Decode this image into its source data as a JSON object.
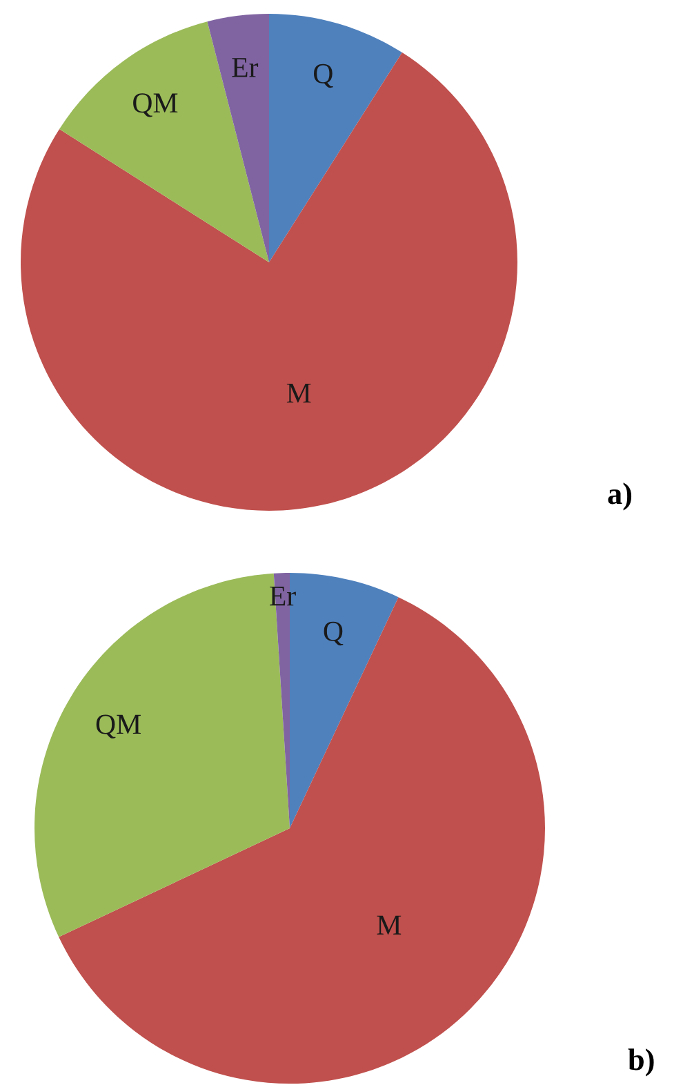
{
  "chart_data": [
    {
      "type": "pie",
      "title": "a)",
      "categories": [
        "Q",
        "M",
        "QM",
        "Er"
      ],
      "values": [
        9,
        75,
        12,
        4
      ],
      "colors": [
        "#4f81bd",
        "#c0504d",
        "#9bbb59",
        "#8064a2"
      ]
    },
    {
      "type": "pie",
      "title": "b)",
      "categories": [
        "Q",
        "M",
        "QM",
        "Er"
      ],
      "values": [
        7,
        61,
        31,
        1
      ],
      "colors": [
        "#4f81bd",
        "#c0504d",
        "#9bbb59",
        "#8064a2"
      ]
    }
  ]
}
